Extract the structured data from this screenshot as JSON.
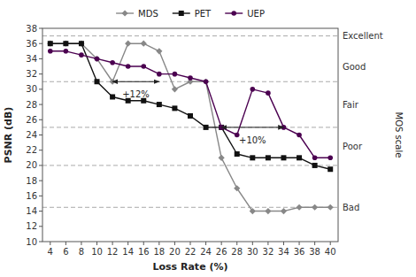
{
  "chart_data": {
    "type": "line",
    "xlabel": "Loss Rate (%)",
    "ylabel": "PSNR (dB)",
    "y2label": "MOS scale",
    "x": [
      4,
      6,
      8,
      10,
      12,
      14,
      16,
      18,
      20,
      22,
      24,
      26,
      28,
      30,
      32,
      34,
      36,
      38,
      40
    ],
    "series": [
      {
        "name": "MDS",
        "color": "#888888",
        "marker": "diamond",
        "values": [
          36,
          36,
          36,
          34,
          31,
          36,
          36,
          35,
          30,
          31,
          31,
          21,
          17,
          14,
          14,
          14,
          14.5,
          14.5,
          14.5
        ]
      },
      {
        "name": "PET",
        "color": "#111111",
        "marker": "square",
        "values": [
          36,
          36,
          36,
          31,
          29,
          28.5,
          28.5,
          28,
          27.5,
          26.5,
          25,
          25,
          21.5,
          21,
          21,
          21,
          21,
          20,
          19.5
        ]
      },
      {
        "name": "UEP",
        "color": "#4B0050",
        "marker": "circle",
        "values": [
          35,
          35,
          34.5,
          34,
          33.5,
          33,
          33,
          32,
          32,
          31.5,
          31,
          25,
          24,
          30,
          29.5,
          25,
          24,
          21,
          21
        ]
      }
    ],
    "xlim": [
      3,
      41
    ],
    "ylim": [
      10,
      38
    ],
    "xticks": [
      4,
      6,
      8,
      10,
      12,
      14,
      16,
      18,
      20,
      22,
      24,
      26,
      28,
      30,
      32,
      34,
      36,
      38,
      40
    ],
    "yticks": [
      10,
      12,
      14,
      16,
      18,
      20,
      22,
      24,
      26,
      28,
      30,
      32,
      34,
      36,
      38
    ],
    "hlines": [
      37,
      31,
      25,
      20,
      14.5
    ],
    "scale_labels": [
      {
        "text": "Excellent",
        "y": 37
      },
      {
        "text": "Good",
        "y": 33
      },
      {
        "text": "Fair",
        "y": 28
      },
      {
        "text": "Poor",
        "y": 22.5
      },
      {
        "text": "Bad",
        "y": 14.5
      }
    ],
    "annotations": [
      {
        "text": "+12%",
        "x": 15,
        "y": 30,
        "x_from": 12,
        "x_to": 18,
        "y_arrow": 31
      },
      {
        "text": "+10%",
        "x": 30,
        "y": 24,
        "x_from": 26,
        "x_to": 34,
        "y_arrow": 25
      }
    ],
    "grid": false,
    "legend": "top"
  }
}
